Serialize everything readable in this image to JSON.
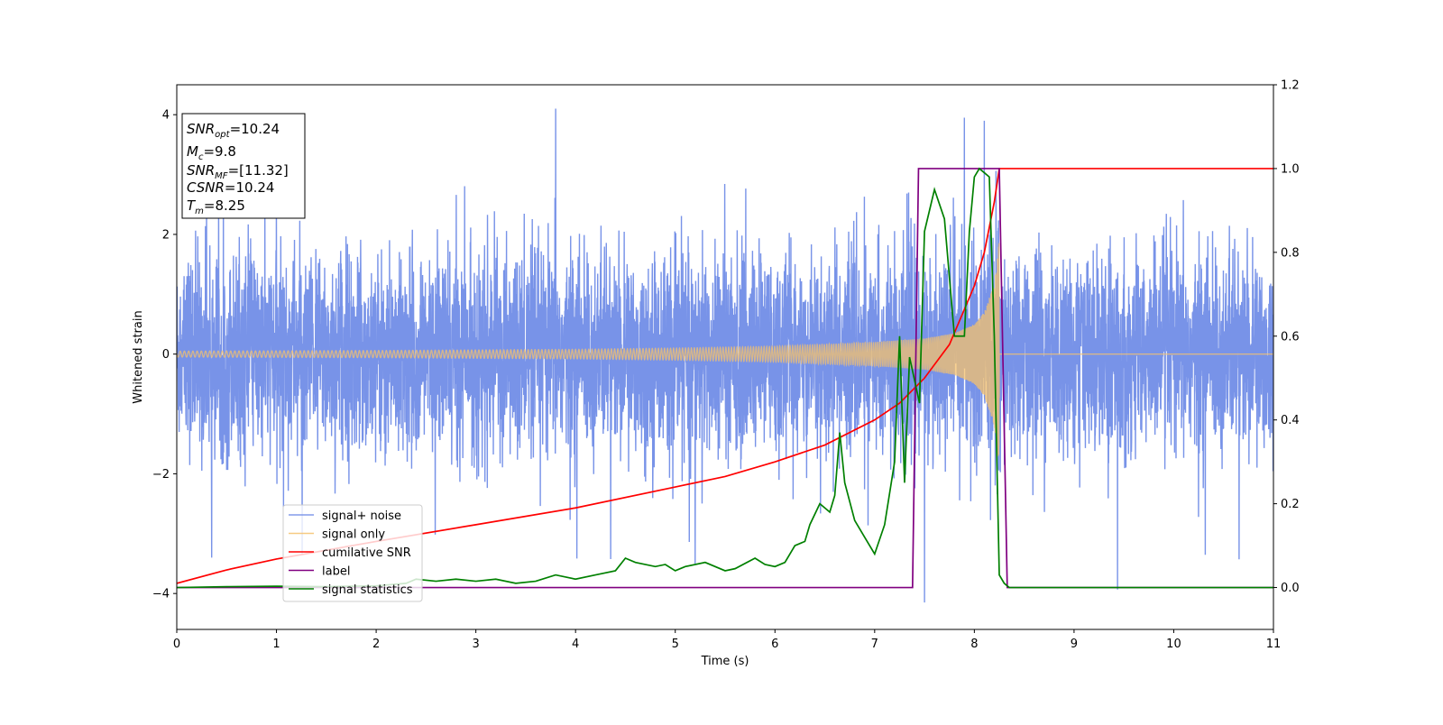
{
  "chart_data": {
    "type": "line",
    "title": "",
    "xlabel": "Time (s)",
    "ylabel": "Whitened strain",
    "xlim": [
      0,
      11
    ],
    "ylim": [
      -4.6,
      4.5
    ],
    "y2lim": [
      -0.1,
      1.2
    ],
    "x_ticks": [
      0,
      1,
      2,
      3,
      4,
      5,
      6,
      7,
      8,
      9,
      10,
      11
    ],
    "y_ticks": [
      -4,
      -2,
      0,
      2,
      4
    ],
    "y2_ticks": [
      0.0,
      0.2,
      0.4,
      0.6,
      0.8,
      1.0,
      1.2
    ],
    "legend_position": "bottom-left",
    "legend": [
      {
        "name": "signal+ noise",
        "color": "#6d8ae6"
      },
      {
        "name": "signal only",
        "color": "#f5c16c"
      },
      {
        "name": "cumilative SNR",
        "color": "#ff0000"
      },
      {
        "name": "label",
        "color": "#800080"
      },
      {
        "name": "signal statistics",
        "color": "#008000"
      }
    ],
    "info_box": {
      "snr_opt": {
        "base": "SNR",
        "sub": "opt",
        "value": "=10.24"
      },
      "mc": {
        "base": "M",
        "sub": "c",
        "value": "=9.8"
      },
      "snr_mf": {
        "base": "SNR",
        "sub": "MF",
        "value": "=[11.32]"
      },
      "csnr": {
        "base": "CSNR",
        "value": "=10.24"
      },
      "tm": {
        "base": "T",
        "sub": "m",
        "value": "=8.25"
      }
    },
    "series": [
      {
        "name": "signal+ noise",
        "axis": "left",
        "color": "#6d8ae6",
        "description": "whitened noise, approx. std 1.0, spanning x 0 to 11",
        "noise_std": 1.0,
        "extreme_points": [
          [
            3.8,
            4.1
          ],
          [
            7.5,
            -4.15
          ],
          [
            7.9,
            3.95
          ],
          [
            8.1,
            3.9
          ],
          [
            0.35,
            -3.4
          ],
          [
            5.2,
            -3.5
          ]
        ]
      },
      {
        "name": "signal only",
        "axis": "left",
        "color": "#f5c16c",
        "description": "chirp with amplitude growing toward merger, zero after 8.25",
        "merger_time": 8.25,
        "envelope": [
          [
            0,
            0.05
          ],
          [
            2,
            0.06
          ],
          [
            4,
            0.08
          ],
          [
            5,
            0.1
          ],
          [
            6,
            0.13
          ],
          [
            7,
            0.2
          ],
          [
            7.5,
            0.26
          ],
          [
            7.8,
            0.35
          ],
          [
            8.0,
            0.5
          ],
          [
            8.1,
            0.7
          ],
          [
            8.2,
            1.2
          ],
          [
            8.25,
            1.9
          ]
        ]
      },
      {
        "name": "cumilative SNR",
        "axis": "right",
        "x": [
          0,
          0.5,
          1,
          2,
          3,
          4,
          5,
          5.5,
          6,
          6.5,
          7,
          7.25,
          7.5,
          7.75,
          8.0,
          8.1,
          8.2,
          8.25,
          11
        ],
        "y": [
          0.01,
          0.042,
          0.068,
          0.11,
          0.15,
          0.19,
          0.24,
          0.265,
          0.3,
          0.34,
          0.4,
          0.44,
          0.5,
          0.58,
          0.72,
          0.8,
          0.92,
          1.0,
          1.0
        ]
      },
      {
        "name": "label",
        "axis": "right",
        "x": [
          0,
          7.38,
          7.44,
          8.25,
          8.33,
          11
        ],
        "y": [
          0,
          0,
          1.0,
          1.0,
          0,
          0
        ]
      },
      {
        "name": "signal statistics",
        "axis": "right",
        "x": [
          0,
          0.5,
          1,
          1.5,
          2,
          2.3,
          2.4,
          2.6,
          2.8,
          3,
          3.2,
          3.4,
          3.6,
          3.8,
          4,
          4.2,
          4.4,
          4.5,
          4.6,
          4.8,
          4.9,
          5.0,
          5.1,
          5.3,
          5.5,
          5.6,
          5.8,
          5.9,
          6.0,
          6.1,
          6.2,
          6.3,
          6.35,
          6.45,
          6.55,
          6.6,
          6.65,
          6.7,
          6.8,
          6.9,
          7.0,
          7.1,
          7.2,
          7.25,
          7.3,
          7.35,
          7.45,
          7.5,
          7.55,
          7.6,
          7.7,
          7.8,
          7.9,
          7.95,
          8.0,
          8.05,
          8.1,
          8.15,
          8.2,
          8.25,
          8.3,
          8.35,
          8.4,
          11
        ],
        "y": [
          0.0,
          0.002,
          0.003,
          0.002,
          0.004,
          0.01,
          0.02,
          0.015,
          0.02,
          0.015,
          0.02,
          0.01,
          0.015,
          0.03,
          0.02,
          0.03,
          0.04,
          0.07,
          0.06,
          0.05,
          0.055,
          0.04,
          0.05,
          0.06,
          0.04,
          0.045,
          0.07,
          0.055,
          0.05,
          0.06,
          0.1,
          0.11,
          0.15,
          0.2,
          0.18,
          0.22,
          0.37,
          0.25,
          0.16,
          0.12,
          0.08,
          0.15,
          0.3,
          0.6,
          0.25,
          0.55,
          0.44,
          0.85,
          0.9,
          0.95,
          0.88,
          0.6,
          0.6,
          0.85,
          0.98,
          1.0,
          0.99,
          0.98,
          0.6,
          0.03,
          0.01,
          0.0,
          0.0,
          0.0
        ]
      }
    ]
  }
}
